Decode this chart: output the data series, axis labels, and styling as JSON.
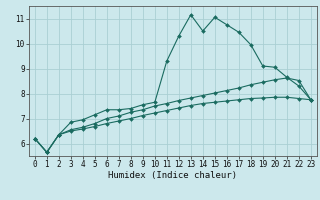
{
  "xlabel": "Humidex (Indice chaleur)",
  "background_color": "#cce8ec",
  "grid_color": "#aacfd4",
  "line_color": "#1a6b60",
  "xlim": [
    -0.5,
    23.5
  ],
  "ylim": [
    5.5,
    11.5
  ],
  "yticks": [
    6,
    7,
    8,
    9,
    10,
    11
  ],
  "xticks": [
    0,
    1,
    2,
    3,
    4,
    5,
    6,
    7,
    8,
    9,
    10,
    11,
    12,
    13,
    14,
    15,
    16,
    17,
    18,
    19,
    20,
    21,
    22,
    23
  ],
  "line1_x": [
    0,
    1,
    2,
    3,
    4,
    5,
    6,
    7,
    8,
    9,
    10,
    11,
    12,
    13,
    14,
    15,
    16,
    17,
    18,
    19,
    20,
    21,
    22,
    23
  ],
  "line1_y": [
    6.2,
    5.65,
    6.35,
    6.85,
    6.95,
    7.15,
    7.35,
    7.35,
    7.4,
    7.55,
    7.65,
    9.3,
    10.3,
    11.15,
    10.5,
    11.05,
    10.75,
    10.45,
    9.95,
    9.1,
    9.05,
    8.65,
    8.3,
    7.75
  ],
  "line2_x": [
    0,
    1,
    2,
    3,
    4,
    5,
    6,
    7,
    8,
    9,
    10,
    11,
    12,
    13,
    14,
    15,
    16,
    17,
    18,
    19,
    20,
    21,
    22,
    23
  ],
  "line2_y": [
    6.2,
    5.65,
    6.35,
    6.55,
    6.65,
    6.8,
    7.0,
    7.1,
    7.25,
    7.35,
    7.5,
    7.6,
    7.72,
    7.82,
    7.92,
    8.02,
    8.12,
    8.22,
    8.35,
    8.45,
    8.55,
    8.62,
    8.52,
    7.75
  ],
  "line3_x": [
    0,
    1,
    2,
    3,
    4,
    5,
    6,
    7,
    8,
    9,
    10,
    11,
    12,
    13,
    14,
    15,
    16,
    17,
    18,
    19,
    20,
    21,
    22,
    23
  ],
  "line3_y": [
    6.2,
    5.65,
    6.35,
    6.5,
    6.58,
    6.68,
    6.8,
    6.9,
    7.0,
    7.12,
    7.22,
    7.32,
    7.42,
    7.52,
    7.6,
    7.65,
    7.7,
    7.75,
    7.8,
    7.82,
    7.85,
    7.85,
    7.8,
    7.75
  ],
  "tick_fontsize": 5.5,
  "xlabel_fontsize": 6.5
}
